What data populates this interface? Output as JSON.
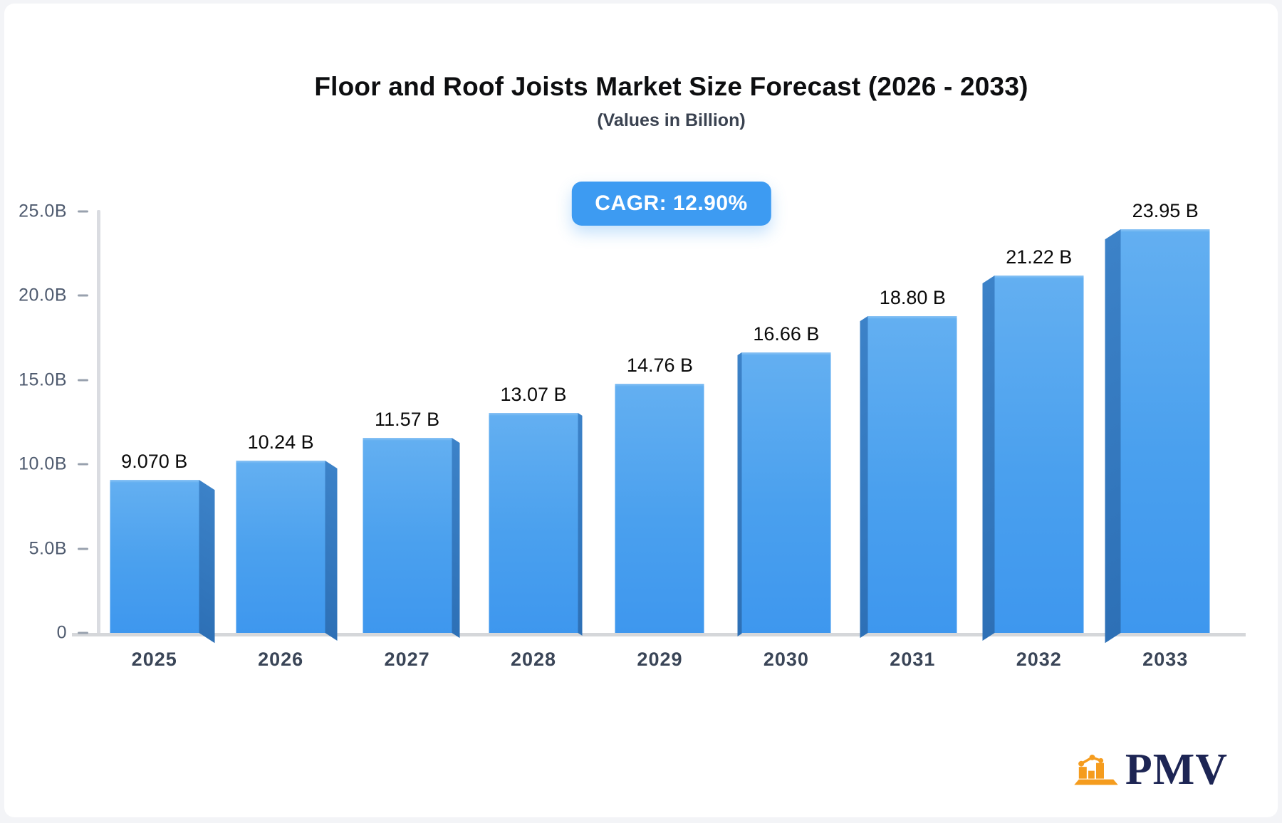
{
  "header": {
    "title": "Floor and Roof Joists Market Size Forecast (2026 - 2033)",
    "subtitle": "(Values in Billion)",
    "cagr_badge": "CAGR: 12.90%"
  },
  "chart_data": {
    "type": "bar",
    "title": "Floor and Roof Joists Market Size Forecast (2026 - 2033)",
    "subtitle": "(Values in Billion)",
    "cagr": "12.90%",
    "categories": [
      "2025",
      "2026",
      "2027",
      "2028",
      "2029",
      "2030",
      "2031",
      "2032",
      "2033"
    ],
    "values": [
      9.07,
      10.24,
      11.57,
      13.07,
      14.76,
      16.66,
      18.8,
      21.22,
      23.95
    ],
    "value_labels": [
      "9.070 B",
      "10.24 B",
      "11.57 B",
      "13.07 B",
      "14.76 B",
      "16.66 B",
      "18.80 B",
      "21.22 B",
      "23.95 B"
    ],
    "y_ticks": [
      "25.0B",
      "20.0B",
      "15.0B",
      "10.0B",
      "5.0B",
      "0"
    ],
    "ylim": [
      0,
      25
    ],
    "xlabel": "",
    "ylabel": "",
    "grid": "off",
    "legend": "none",
    "style": "3d-perspective-bars"
  },
  "colors": {
    "accent": "#3d9bf2",
    "bar_face_top": "#63aff1",
    "bar_face_bottom": "#3e97ee",
    "bar_side": "#2f74bb",
    "axis_line": "#dadce1",
    "tick_text": "#4e5a6e",
    "xlabel_text": "#3a4557",
    "logo_navy": "#1d2554",
    "logo_orange": "#f59c1e"
  },
  "branding": {
    "logo_text": "PMV"
  }
}
